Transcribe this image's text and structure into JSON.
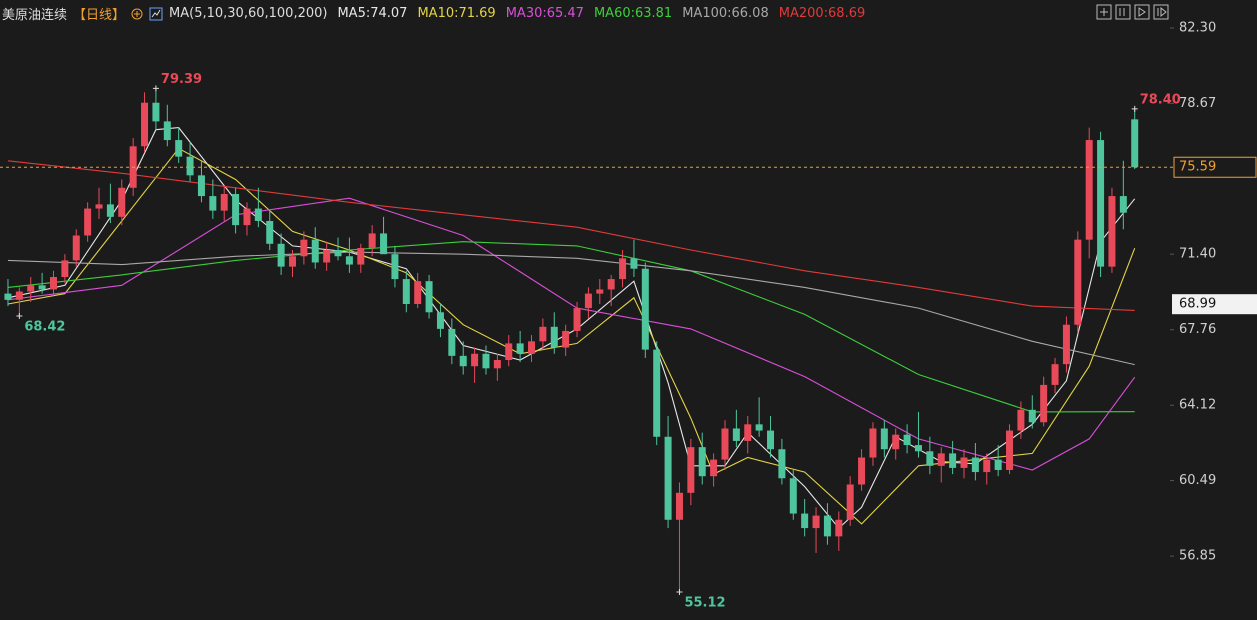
{
  "chart_data": {
    "type": "candlestick",
    "title": "美原油连续",
    "period": "【日线】",
    "indicator": "MA(5,10,30,60,100,200)",
    "ylim": [
      53.77,
      83.65
    ],
    "xlim": [
      -0.7,
      102.1
    ],
    "yticks": [
      {
        "value": 82.3,
        "label": "82.30"
      },
      {
        "value": 78.67,
        "label": "78.67"
      },
      {
        "value": 71.4,
        "label": "71.40"
      },
      {
        "value": 67.76,
        "label": "67.76"
      },
      {
        "value": 64.12,
        "label": "64.12"
      },
      {
        "value": 60.49,
        "label": "60.49"
      },
      {
        "value": 56.85,
        "label": "56.85"
      }
    ],
    "up_color": "#e84a5a",
    "down_color": "#4ec59c",
    "candles": {
      "open": [
        69.5,
        69.2,
        69.6,
        69.9,
        69.7,
        70.3,
        71.1,
        72.3,
        73.6,
        73.8,
        73.2,
        74.6,
        76.6,
        78.7,
        77.8,
        76.9,
        76.1,
        75.2,
        74.2,
        73.5,
        74.3,
        72.8,
        73.6,
        73.0,
        71.9,
        70.8,
        71.3,
        72.1,
        71.0,
        71.6,
        71.3,
        70.9,
        71.7,
        72.4,
        71.4,
        70.2,
        69.0,
        70.1,
        68.6,
        67.8,
        66.5,
        66.0,
        66.6,
        65.9,
        66.3,
        67.1,
        66.6,
        67.2,
        67.9,
        66.9,
        67.7,
        68.8,
        69.5,
        69.7,
        70.2,
        71.2,
        70.7,
        66.8,
        62.6,
        58.6,
        59.9,
        62.1,
        60.7,
        61.5,
        63.0,
        62.4,
        63.2,
        62.9,
        62.0,
        60.6,
        58.9,
        58.2,
        58.8,
        57.8,
        58.6,
        60.3,
        61.6,
        63.0,
        62.0,
        62.7,
        62.2,
        61.9,
        61.2,
        61.8,
        61.1,
        61.6,
        60.9,
        61.5,
        61.0,
        62.9,
        63.9,
        63.3,
        65.1,
        66.1,
        68.0,
        72.1,
        76.9,
        70.8,
        74.2,
        77.9
      ],
      "high": [
        70.2,
        69.8,
        70.3,
        70.5,
        70.6,
        71.4,
        72.6,
        73.9,
        74.6,
        74.8,
        75.0,
        77.0,
        79.2,
        79.39,
        78.6,
        77.5,
        76.8,
        75.9,
        75.0,
        74.7,
        74.6,
        73.9,
        74.6,
        73.5,
        72.4,
        71.6,
        72.5,
        72.7,
        72.0,
        72.2,
        72.2,
        71.9,
        72.8,
        73.2,
        71.8,
        70.6,
        70.5,
        70.4,
        69.0,
        68.3,
        67.2,
        66.9,
        67.0,
        66.6,
        67.5,
        67.7,
        67.5,
        68.3,
        68.6,
        68.0,
        69.1,
        69.8,
        70.2,
        70.4,
        71.6,
        72.1,
        71.0,
        67.2,
        63.6,
        60.4,
        62.5,
        62.8,
        61.8,
        63.4,
        63.9,
        63.6,
        64.5,
        63.6,
        62.5,
        61.0,
        59.6,
        59.2,
        59.4,
        59.0,
        60.7,
        62.0,
        63.3,
        63.4,
        63.0,
        63.2,
        63.8,
        62.6,
        62.1,
        62.4,
        62.0,
        62.3,
        61.8,
        62.2,
        63.2,
        64.3,
        64.6,
        65.5,
        66.4,
        68.4,
        72.5,
        77.5,
        77.3,
        74.6,
        75.9,
        78.4
      ],
      "low": [
        68.9,
        68.42,
        69.1,
        69.5,
        69.4,
        70.0,
        70.8,
        72.0,
        73.1,
        72.9,
        72.8,
        74.2,
        76.3,
        77.4,
        76.6,
        75.8,
        74.9,
        73.9,
        73.1,
        73.0,
        72.4,
        72.3,
        72.7,
        71.6,
        70.4,
        70.3,
        70.9,
        70.7,
        70.6,
        71.1,
        70.5,
        70.5,
        71.3,
        71.9,
        69.8,
        68.6,
        68.8,
        68.3,
        67.4,
        66.1,
        65.6,
        65.2,
        65.6,
        65.3,
        66.0,
        66.2,
        66.2,
        66.8,
        66.6,
        66.5,
        67.4,
        68.3,
        69.0,
        68.9,
        69.8,
        70.3,
        66.4,
        62.2,
        58.2,
        55.12,
        59.3,
        60.3,
        60.2,
        61.0,
        62.1,
        61.8,
        62.6,
        61.6,
        60.3,
        58.6,
        57.8,
        57.0,
        57.4,
        57.1,
        58.3,
        60.0,
        61.2,
        61.6,
        61.5,
        61.8,
        61.6,
        60.8,
        60.4,
        60.8,
        60.6,
        60.5,
        60.3,
        60.7,
        60.8,
        62.5,
        63.0,
        63.1,
        64.7,
        65.7,
        67.6,
        71.2,
        70.3,
        70.5,
        72.6,
        75.5
      ],
      "close": [
        69.2,
        69.6,
        69.9,
        69.7,
        70.3,
        71.1,
        72.3,
        73.6,
        73.8,
        73.2,
        74.6,
        76.6,
        78.7,
        77.8,
        76.9,
        76.1,
        75.2,
        74.2,
        73.5,
        74.3,
        72.8,
        73.6,
        73.0,
        71.9,
        70.8,
        71.3,
        72.1,
        71.0,
        71.6,
        71.3,
        70.9,
        71.7,
        72.4,
        71.4,
        70.2,
        69.0,
        70.1,
        68.6,
        67.8,
        66.5,
        66.0,
        66.6,
        65.9,
        66.3,
        67.1,
        66.6,
        67.2,
        67.9,
        66.9,
        67.7,
        68.8,
        69.5,
        69.7,
        70.2,
        71.2,
        70.7,
        66.8,
        62.6,
        58.6,
        59.9,
        62.1,
        60.7,
        61.5,
        63.0,
        62.4,
        63.2,
        62.9,
        62.0,
        60.6,
        58.9,
        58.2,
        58.8,
        57.8,
        58.6,
        60.3,
        61.6,
        63.0,
        62.0,
        62.7,
        62.2,
        61.9,
        61.2,
        61.8,
        61.1,
        61.6,
        60.9,
        61.5,
        61.0,
        62.9,
        63.9,
        63.3,
        65.1,
        66.1,
        68.0,
        72.1,
        76.9,
        70.8,
        74.2,
        73.4,
        75.59
      ]
    },
    "series": [
      {
        "name": "MA5:74.07",
        "color": "#e6e6e6",
        "x": [
          0,
          5,
          10,
          13,
          15,
          20,
          25,
          30,
          35,
          40,
          45,
          50,
          55,
          58,
          60,
          63,
          65,
          70,
          73,
          75,
          78,
          82,
          85,
          90,
          93,
          96,
          99
        ],
        "values": [
          69.3,
          69.9,
          74.0,
          77.4,
          77.5,
          74.0,
          71.8,
          71.5,
          70.7,
          67.0,
          66.3,
          67.8,
          70.1,
          65.2,
          61.2,
          61.2,
          62.8,
          60.2,
          58.2,
          59.2,
          62.6,
          61.4,
          61.3,
          63.2,
          65.3,
          72.0,
          74.07
        ]
      },
      {
        "name": "MA10:71.69",
        "color": "#e3d444",
        "x": [
          0,
          5,
          10,
          15,
          20,
          25,
          30,
          35,
          40,
          45,
          50,
          55,
          60,
          62,
          65,
          70,
          75,
          80,
          85,
          90,
          95,
          99
        ],
        "values": [
          69.0,
          69.5,
          73.0,
          76.5,
          75.0,
          72.5,
          71.6,
          70.5,
          68.0,
          66.6,
          67.1,
          69.3,
          63.5,
          60.8,
          61.6,
          60.9,
          58.4,
          61.2,
          61.5,
          61.8,
          66.0,
          71.69
        ]
      },
      {
        "name": "MA30:65.47",
        "color": "#d94fd9",
        "x": [
          0,
          10,
          20,
          30,
          40,
          50,
          60,
          70,
          80,
          90,
          95,
          99
        ],
        "values": [
          69.2,
          69.9,
          73.3,
          74.1,
          72.3,
          68.8,
          67.8,
          65.5,
          62.5,
          61.0,
          62.5,
          65.47
        ]
      },
      {
        "name": "MA60:63.81",
        "color": "#3ccf3c",
        "x": [
          0,
          10,
          20,
          30,
          40,
          50,
          60,
          70,
          80,
          90,
          99
        ],
        "values": [
          69.8,
          70.4,
          71.1,
          71.6,
          72.0,
          71.8,
          70.6,
          68.5,
          65.6,
          63.8,
          63.81
        ]
      },
      {
        "name": "MA100:66.08",
        "color": "#a8a8a8",
        "x": [
          0,
          10,
          20,
          30,
          40,
          50,
          60,
          70,
          80,
          90,
          99
        ],
        "values": [
          71.1,
          70.9,
          71.3,
          71.5,
          71.4,
          71.2,
          70.6,
          69.8,
          68.8,
          67.2,
          66.08
        ]
      },
      {
        "name": "MA200:68.69",
        "color": "#e23a3a",
        "x": [
          0,
          10,
          20,
          30,
          40,
          50,
          60,
          70,
          80,
          90,
          99
        ],
        "values": [
          75.9,
          75.3,
          74.6,
          73.9,
          73.3,
          72.7,
          71.6,
          70.6,
          69.8,
          68.9,
          68.69
        ]
      }
    ],
    "annotations": [
      {
        "x": 13,
        "y": 79.39,
        "label": "79.39",
        "color": "#e84a5a"
      },
      {
        "x": 1,
        "y": 68.42,
        "label": "68.42",
        "color": "#4ec59c"
      },
      {
        "x": 59,
        "y": 55.12,
        "label": "55.12",
        "color": "#4ec59c"
      },
      {
        "x": 99,
        "y": 78.4,
        "label": "78.40",
        "color": "#e84a5a"
      }
    ],
    "last_price": {
      "value": 75.59,
      "label": "75.59",
      "color": "#f0a030"
    },
    "marker_price": {
      "value": 68.99,
      "label": "68.99"
    }
  }
}
